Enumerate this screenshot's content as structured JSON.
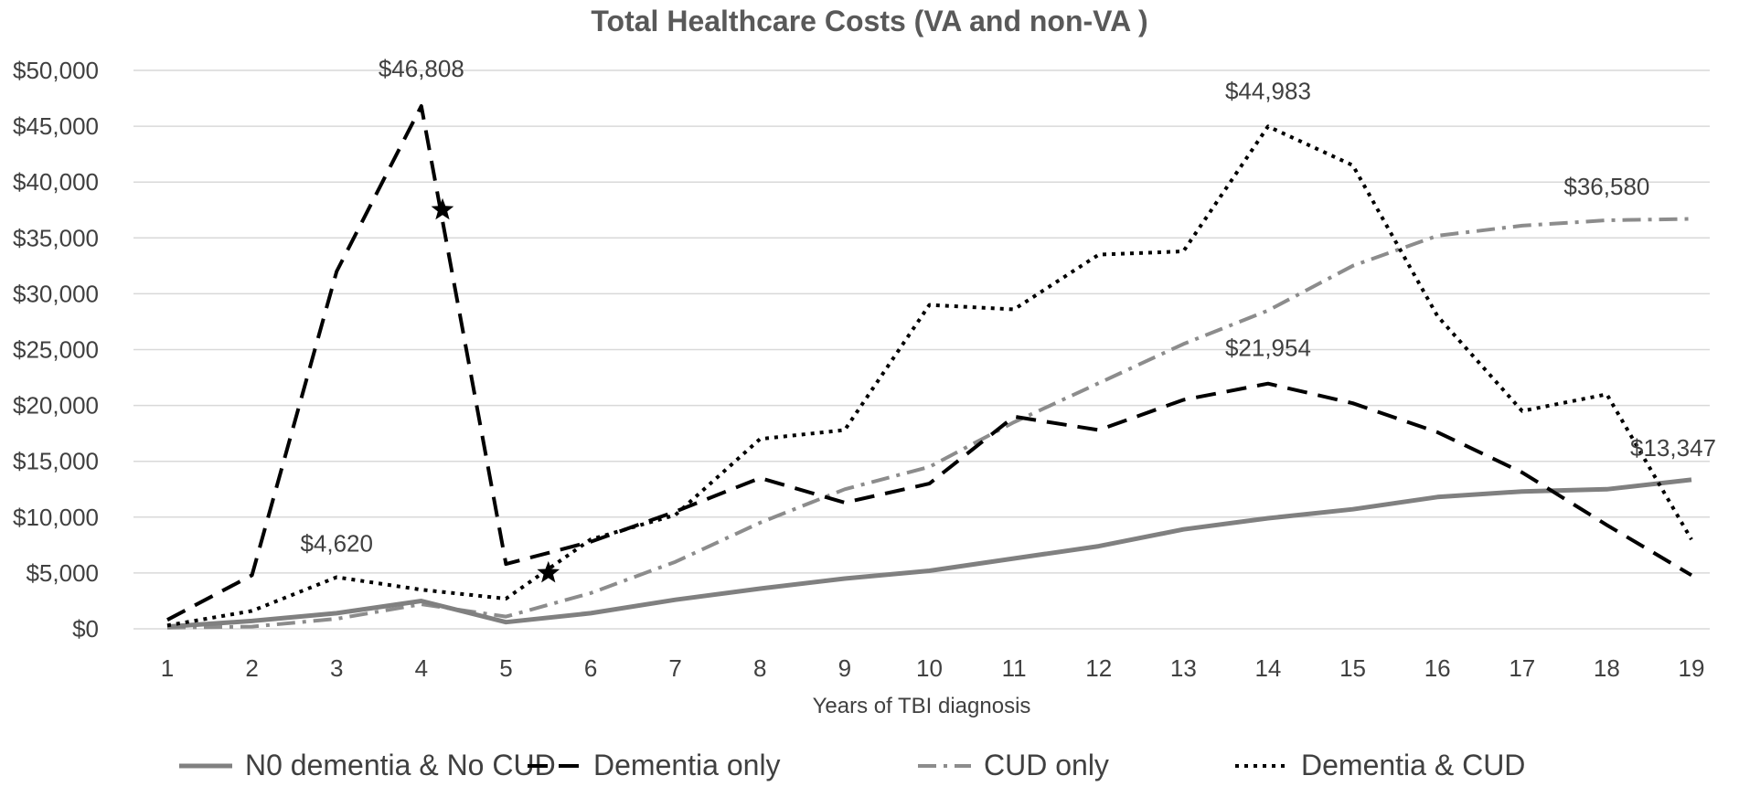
{
  "chart_data": {
    "type": "line",
    "title": "Total Healthcare Costs (VA and non-VA )",
    "xlabel": "Years of TBI diagnosis",
    "ylabel": "",
    "ylim": [
      0,
      50000
    ],
    "y_ticks": [
      0,
      5000,
      10000,
      15000,
      20000,
      25000,
      30000,
      35000,
      40000,
      45000,
      50000
    ],
    "y_tick_labels": [
      "$0",
      "$5,000",
      "$10,000",
      "$15,000",
      "$20,000",
      "$25,000",
      "$30,000",
      "$35,000",
      "$40,000",
      "$45,000",
      "$50,000"
    ],
    "x": [
      1,
      2,
      3,
      4,
      5,
      6,
      7,
      8,
      9,
      10,
      11,
      12,
      13,
      14,
      15,
      16,
      17,
      18,
      19
    ],
    "x_tick_labels": [
      "1",
      "2",
      "3",
      "4",
      "5",
      "6",
      "7",
      "8",
      "9",
      "10",
      "11",
      "12",
      "13",
      "14",
      "15",
      "16",
      "17",
      "18",
      "19"
    ],
    "grid": true,
    "legend_position": "bottom",
    "series": [
      {
        "name": "N0 dementia & No CUD",
        "style": "solid",
        "color": "#808080",
        "values": [
          200,
          700,
          1400,
          2500,
          600,
          1400,
          2600,
          3600,
          4500,
          5200,
          6300,
          7400,
          8900,
          9900,
          10700,
          11800,
          12300,
          12500,
          13347
        ]
      },
      {
        "name": "Dementia only",
        "style": "dashed",
        "color": "#000000",
        "values": [
          800,
          4800,
          32000,
          46808,
          5800,
          7800,
          10500,
          13500,
          11300,
          13000,
          19000,
          17800,
          20500,
          21954,
          20200,
          17600,
          14000,
          9300,
          4800
        ]
      },
      {
        "name": "CUD only",
        "style": "dashdot",
        "color": "#8c8c8c",
        "values": [
          100,
          200,
          900,
          2200,
          1100,
          3200,
          6000,
          9500,
          12500,
          14500,
          18500,
          22000,
          25500,
          28500,
          32500,
          35200,
          36100,
          36580,
          36700
        ]
      },
      {
        "name": "Dementia & CUD",
        "style": "dotted",
        "color": "#000000",
        "values": [
          300,
          1600,
          4620,
          3500,
          2700,
          8000,
          10200,
          17000,
          17800,
          29000,
          28600,
          33500,
          33800,
          44983,
          41500,
          28000,
          19500,
          21000,
          8000
        ]
      }
    ],
    "annotations": [
      {
        "text": "$46,808",
        "series": "Dementia only",
        "x": 4
      },
      {
        "text": "$4,620",
        "series": "Dementia & CUD",
        "x": 3
      },
      {
        "text": "$44,983",
        "series": "Dementia & CUD",
        "x": 14
      },
      {
        "text": "$21,954",
        "series": "Dementia only",
        "x": 14
      },
      {
        "text": "$36,580",
        "series": "CUD only",
        "x": 18
      },
      {
        "text": "$13,347",
        "series": "N0 dementia & No CUD",
        "x": 19
      }
    ],
    "markers": [
      {
        "symbol": "star",
        "x": 4.25,
        "y": 37500
      },
      {
        "symbol": "star",
        "x": 5.5,
        "y": 5000
      }
    ]
  }
}
